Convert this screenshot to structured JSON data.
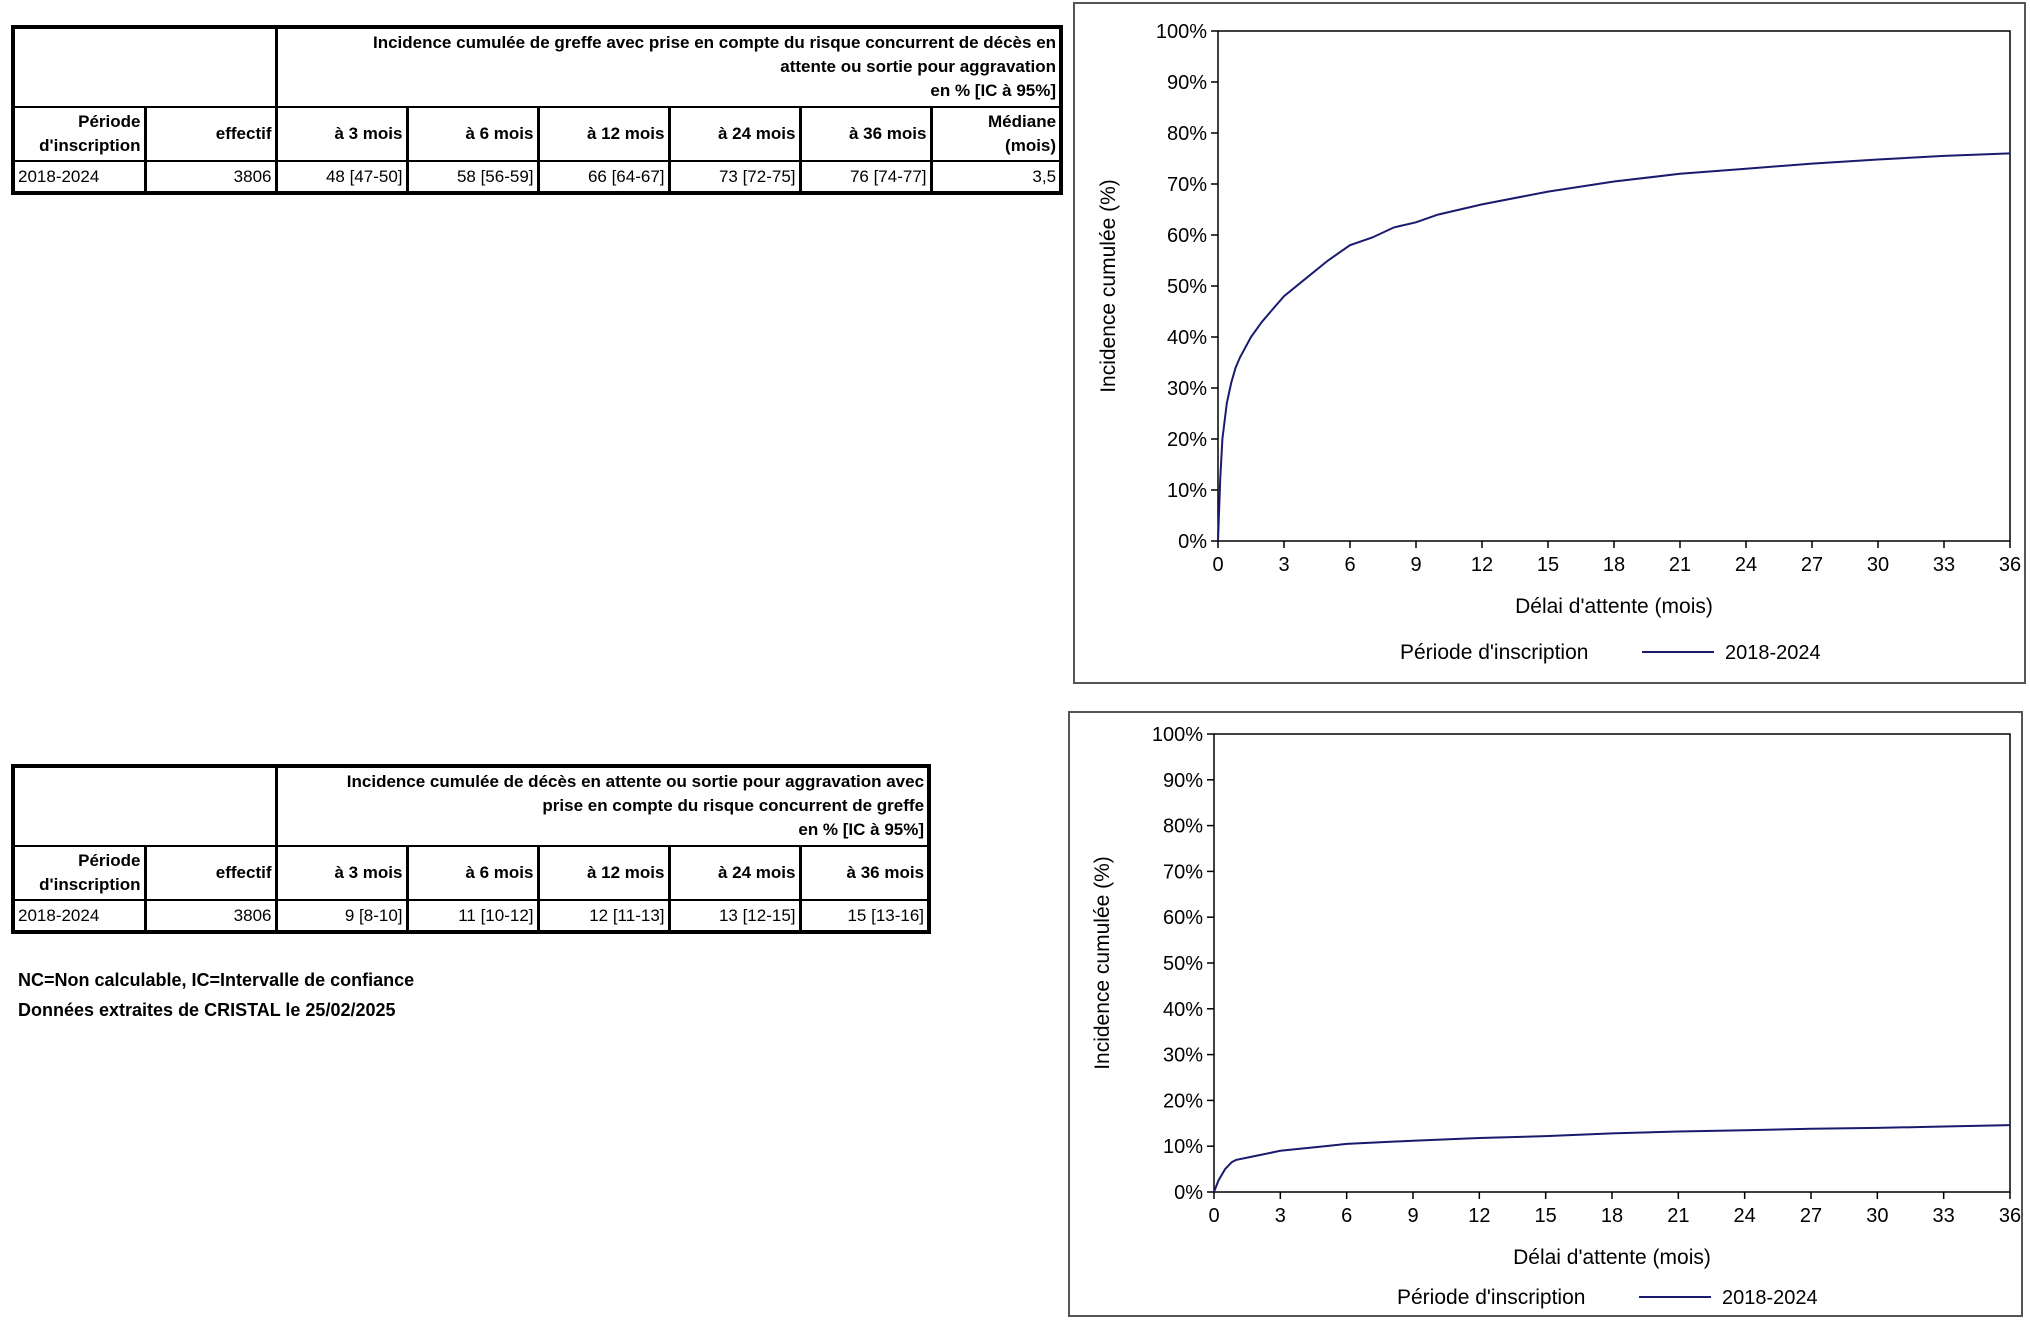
{
  "table1": {
    "title_lines": [
      "Incidence cumulée de greffe avec prise en compte du risque concurrent de décès en",
      "attente ou sortie pour aggravation",
      "en % [IC à 95%]"
    ],
    "headers": [
      "Période d'inscription",
      "effectif",
      "à 3 mois",
      "à 6 mois",
      "à 12 mois",
      "à 24 mois",
      "à 36 mois",
      "Médiane (mois)"
    ],
    "rows": [
      [
        "2018-2024",
        "3806",
        "48 [47-50]",
        "58 [56-59]",
        "66 [64-67]",
        "73 [72-75]",
        "76 [74-77]",
        "3,5"
      ]
    ]
  },
  "table2": {
    "title_lines": [
      "Incidence cumulée de décès en attente ou sortie pour aggravation avec",
      "prise en compte du risque concurrent de greffe",
      "en % [IC à 95%]"
    ],
    "headers": [
      "Période d'inscription",
      "effectif",
      "à 3 mois",
      "à 6 mois",
      "à 12 mois",
      "à 24 mois",
      "à 36 mois"
    ],
    "rows": [
      [
        "2018-2024",
        "3806",
        "9 [8-10]",
        "11 [10-12]",
        "12 [11-13]",
        "13 [12-15]",
        "15 [13-16]"
      ]
    ]
  },
  "notes": [
    "NC=Non calculable, IC=Intervalle de confiance",
    "Données extraites de CRISTAL le 25/02/2025"
  ],
  "chart_data": [
    {
      "type": "line",
      "xlabel": "Délai d'attente (mois)",
      "ylabel": "Incidence cumulée (%)",
      "xlim": [
        0,
        36
      ],
      "ylim": [
        0,
        100
      ],
      "xticks": [
        0,
        3,
        6,
        9,
        12,
        15,
        18,
        21,
        24,
        27,
        30,
        33,
        36
      ],
      "yticks": [
        0,
        10,
        20,
        30,
        40,
        50,
        60,
        70,
        80,
        90,
        100
      ],
      "legend_title": "Période d'inscription",
      "legend_position": "bottom",
      "series": [
        {
          "name": "2018-2024",
          "color": "#1a1a6e",
          "x": [
            0,
            0.1,
            0.2,
            0.4,
            0.6,
            0.8,
            1,
            1.5,
            2,
            2.5,
            3,
            4,
            5,
            6,
            7,
            8,
            9,
            10,
            12,
            15,
            18,
            21,
            24,
            27,
            30,
            33,
            36
          ],
          "y": [
            0,
            12,
            20,
            27,
            31,
            34,
            36,
            40,
            43,
            45.5,
            48,
            51.5,
            55,
            58,
            59.5,
            61.5,
            62.5,
            64,
            66,
            68.5,
            70.5,
            72,
            73,
            74,
            74.8,
            75.5,
            76
          ]
        }
      ]
    },
    {
      "type": "line",
      "xlabel": "Délai d'attente (mois)",
      "ylabel": "Incidence cumulée (%)",
      "xlim": [
        0,
        36
      ],
      "ylim": [
        0,
        100
      ],
      "xticks": [
        0,
        3,
        6,
        9,
        12,
        15,
        18,
        21,
        24,
        27,
        30,
        33,
        36
      ],
      "yticks": [
        0,
        10,
        20,
        30,
        40,
        50,
        60,
        70,
        80,
        90,
        100
      ],
      "legend_title": "Période d'inscription",
      "legend_position": "bottom",
      "series": [
        {
          "name": "2018-2024",
          "color": "#1a1a6e",
          "x": [
            0,
            0.2,
            0.5,
            0.8,
            1,
            1.5,
            2,
            3,
            4,
            5,
            6,
            9,
            12,
            15,
            18,
            21,
            24,
            27,
            30,
            33,
            36
          ],
          "y": [
            0,
            2.5,
            5,
            6.5,
            7,
            7.5,
            8,
            9,
            9.5,
            10,
            10.5,
            11.2,
            11.8,
            12.2,
            12.8,
            13.2,
            13.5,
            13.8,
            14,
            14.3,
            14.6
          ]
        }
      ]
    }
  ]
}
